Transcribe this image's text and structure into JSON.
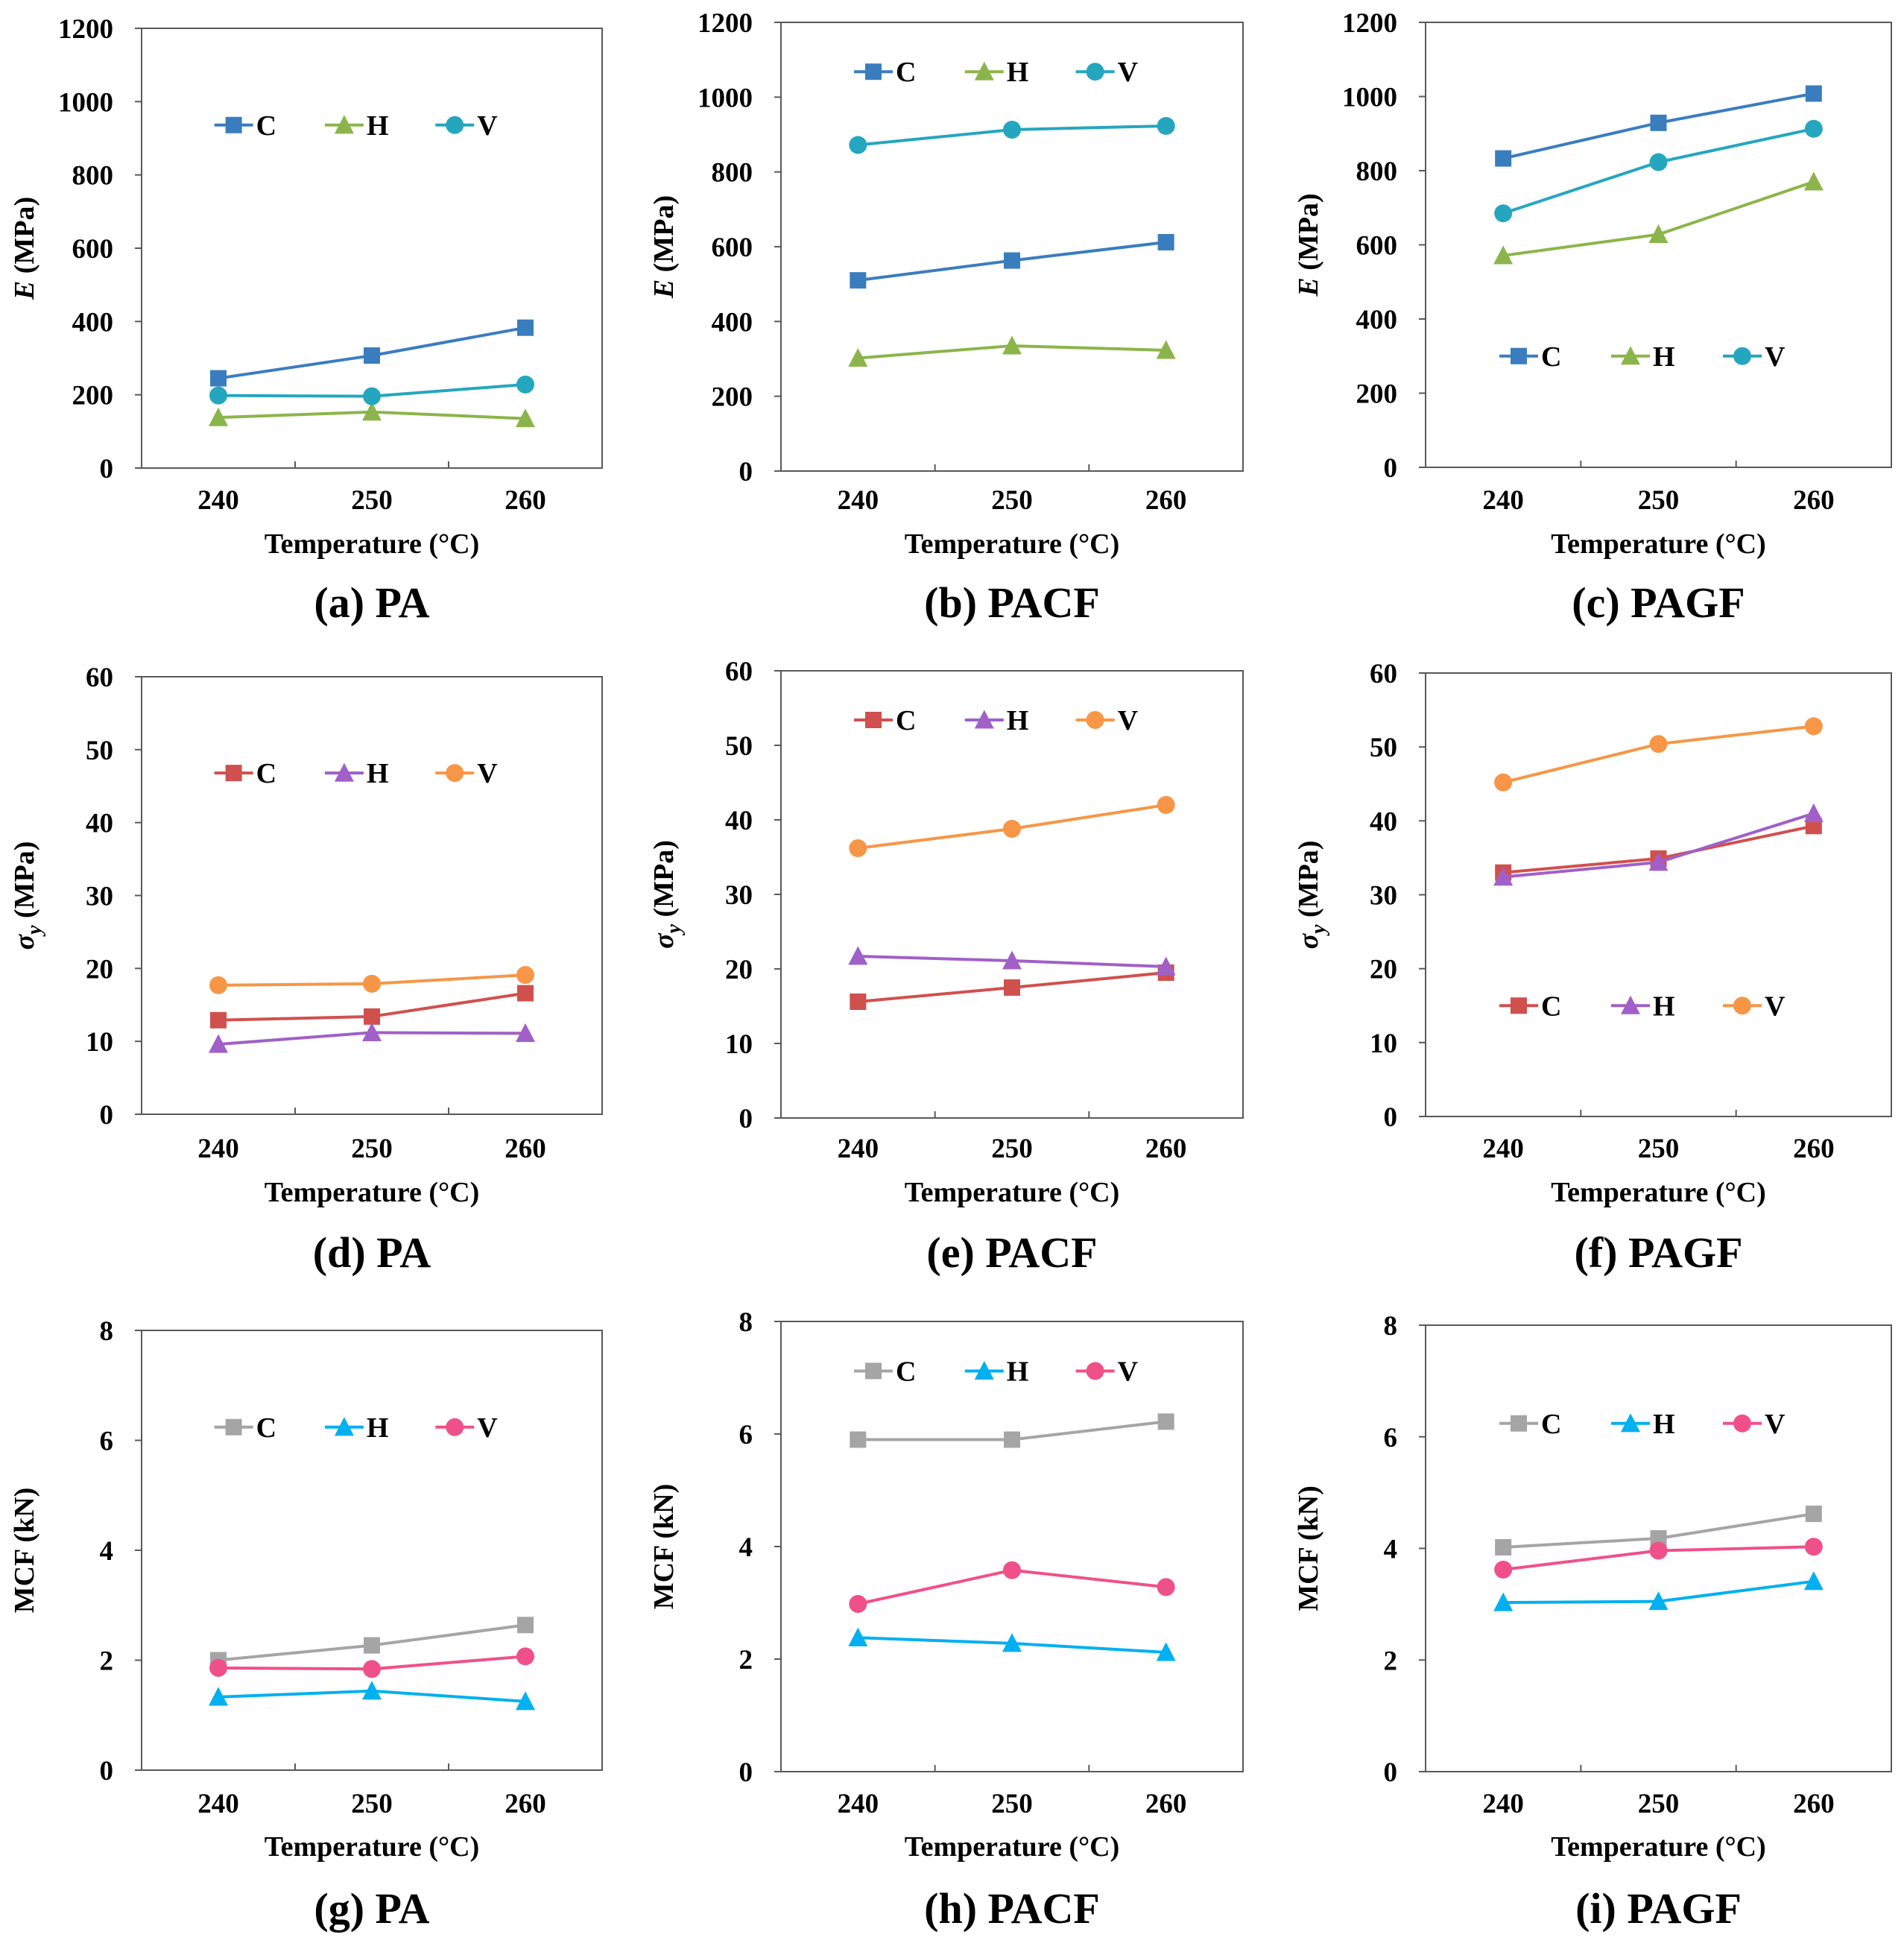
{
  "figure": {
    "xlabel": "Temperature (°C)",
    "ylabel_suffix": " (MPa)",
    "mcf_ylabel": "MCF (kN)",
    "ylabel_symbol_E": "E",
    "ylabel_symbol_sigma": "σ",
    "ylabel_subscript_sigma": "y"
  },
  "chart_data": [
    {
      "type": "line",
      "panel": "a",
      "caption": "(a) PA",
      "ylabel": "E (MPa)",
      "xlabel": "Temperature (°C)",
      "categories": [
        "240",
        "250",
        "260"
      ],
      "ylim": [
        0,
        1200
      ],
      "yticks": [
        0,
        200,
        400,
        600,
        800,
        1000,
        1200
      ],
      "legend_position": "upper-middle",
      "series": [
        {
          "name": "C",
          "color": "#3A7DBF",
          "marker": "square",
          "values": [
            245,
            307,
            383
          ]
        },
        {
          "name": "H",
          "color": "#8BB54A",
          "marker": "triangle",
          "values": [
            138,
            153,
            135
          ]
        },
        {
          "name": "V",
          "color": "#25A6BF",
          "marker": "circle",
          "values": [
            198,
            196,
            228
          ]
        }
      ]
    },
    {
      "type": "line",
      "panel": "b",
      "caption": "(b) PACF",
      "ylabel": "E (MPa)",
      "xlabel": "Temperature (°C)",
      "categories": [
        "240",
        "250",
        "260"
      ],
      "ylim": [
        0,
        1200
      ],
      "yticks": [
        0,
        200,
        400,
        600,
        800,
        1000,
        1200
      ],
      "legend_position": "top",
      "series": [
        {
          "name": "C",
          "color": "#3A7DBF",
          "marker": "square",
          "values": [
            510,
            563,
            612
          ]
        },
        {
          "name": "H",
          "color": "#8BB54A",
          "marker": "triangle",
          "values": [
            302,
            335,
            323
          ]
        },
        {
          "name": "V",
          "color": "#25A6BF",
          "marker": "circle",
          "values": [
            872,
            913,
            923
          ]
        }
      ]
    },
    {
      "type": "line",
      "panel": "c",
      "caption": "(c) PAGF",
      "ylabel": "E (MPa)",
      "xlabel": "Temperature (°C)",
      "categories": [
        "240",
        "250",
        "260"
      ],
      "ylim": [
        0,
        1200
      ],
      "yticks": [
        0,
        200,
        400,
        600,
        800,
        1000,
        1200
      ],
      "legend_position": "middle",
      "series": [
        {
          "name": "C",
          "color": "#3A7DBF",
          "marker": "square",
          "values": [
            833,
            929,
            1008
          ]
        },
        {
          "name": "H",
          "color": "#8BB54A",
          "marker": "triangle",
          "values": [
            571,
            628,
            770
          ]
        },
        {
          "name": "V",
          "color": "#25A6BF",
          "marker": "circle",
          "values": [
            685,
            823,
            913
          ]
        }
      ]
    },
    {
      "type": "line",
      "panel": "d",
      "caption": "(d) PA",
      "ylabel": "σy (MPa)",
      "xlabel": "Temperature (°C)",
      "categories": [
        "240",
        "250",
        "260"
      ],
      "ylim": [
        0,
        60
      ],
      "yticks": [
        0,
        10,
        20,
        30,
        40,
        50,
        60
      ],
      "legend_position": "upper-middle",
      "series": [
        {
          "name": "C",
          "color": "#D0504D",
          "marker": "square",
          "values": [
            12.9,
            13.4,
            16.6
          ]
        },
        {
          "name": "H",
          "color": "#A060C8",
          "marker": "triangle",
          "values": [
            9.6,
            11.2,
            11.1
          ]
        },
        {
          "name": "V",
          "color": "#F79646",
          "marker": "circle",
          "values": [
            17.7,
            17.9,
            19.1
          ]
        }
      ]
    },
    {
      "type": "line",
      "panel": "e",
      "caption": "(e) PACF",
      "ylabel": "σy (MPa)",
      "xlabel": "Temperature (°C)",
      "categories": [
        "240",
        "250",
        "260"
      ],
      "ylim": [
        0,
        60
      ],
      "yticks": [
        0,
        10,
        20,
        30,
        40,
        50,
        60
      ],
      "legend_position": "top",
      "series": [
        {
          "name": "C",
          "color": "#D0504D",
          "marker": "square",
          "values": [
            15.6,
            17.5,
            19.5
          ]
        },
        {
          "name": "H",
          "color": "#A060C8",
          "marker": "triangle",
          "values": [
            21.7,
            21.1,
            20.3
          ]
        },
        {
          "name": "V",
          "color": "#F79646",
          "marker": "circle",
          "values": [
            36.2,
            38.8,
            42.0
          ]
        }
      ]
    },
    {
      "type": "line",
      "panel": "f",
      "caption": "(f) PAGF",
      "ylabel": "σy (MPa)",
      "xlabel": "Temperature (°C)",
      "categories": [
        "240",
        "250",
        "260"
      ],
      "ylim": [
        0,
        60
      ],
      "yticks": [
        0,
        10,
        20,
        30,
        40,
        50,
        60
      ],
      "legend_position": "lower-middle",
      "series": [
        {
          "name": "C",
          "color": "#D0504D",
          "marker": "square",
          "values": [
            33.0,
            34.9,
            39.3
          ]
        },
        {
          "name": "H",
          "color": "#A060C8",
          "marker": "triangle",
          "values": [
            32.4,
            34.4,
            41.0
          ]
        },
        {
          "name": "V",
          "color": "#F79646",
          "marker": "circle",
          "values": [
            45.2,
            50.4,
            52.8
          ]
        }
      ]
    },
    {
      "type": "line",
      "panel": "g",
      "caption": "(g) PA",
      "ylabel": "MCF (kN)",
      "xlabel": "Temperature (°C)",
      "categories": [
        "240",
        "250",
        "260"
      ],
      "ylim": [
        0,
        8
      ],
      "yticks": [
        0,
        2,
        4,
        6,
        8
      ],
      "legend_position": "upper-middle",
      "series": [
        {
          "name": "C",
          "color": "#A5A5A5",
          "marker": "square",
          "values": [
            2.0,
            2.27,
            2.64
          ]
        },
        {
          "name": "H",
          "color": "#00B0F0",
          "marker": "triangle",
          "values": [
            1.33,
            1.44,
            1.25
          ]
        },
        {
          "name": "V",
          "color": "#F0508A",
          "marker": "circle",
          "values": [
            1.86,
            1.84,
            2.07
          ]
        }
      ]
    },
    {
      "type": "line",
      "panel": "h",
      "caption": "(h) PACF",
      "ylabel": "MCF (kN)",
      "xlabel": "Temperature (°C)",
      "categories": [
        "240",
        "250",
        "260"
      ],
      "ylim": [
        0,
        8
      ],
      "yticks": [
        0,
        2,
        4,
        6,
        8
      ],
      "legend_position": "top",
      "series": [
        {
          "name": "C",
          "color": "#A5A5A5",
          "marker": "square",
          "values": [
            5.9,
            5.9,
            6.22
          ]
        },
        {
          "name": "H",
          "color": "#00B0F0",
          "marker": "triangle",
          "values": [
            2.38,
            2.28,
            2.12
          ]
        },
        {
          "name": "V",
          "color": "#F0508A",
          "marker": "circle",
          "values": [
            2.98,
            3.58,
            3.28
          ]
        }
      ]
    },
    {
      "type": "line",
      "panel": "i",
      "caption": "(i) PAGF",
      "ylabel": "MCF (kN)",
      "xlabel": "Temperature (°C)",
      "categories": [
        "240",
        "250",
        "260"
      ],
      "ylim": [
        0,
        8
      ],
      "yticks": [
        0,
        2,
        4,
        6,
        8
      ],
      "legend_position": "upper-middle",
      "series": [
        {
          "name": "C",
          "color": "#A5A5A5",
          "marker": "square",
          "values": [
            4.02,
            4.18,
            4.62
          ]
        },
        {
          "name": "H",
          "color": "#00B0F0",
          "marker": "triangle",
          "values": [
            3.03,
            3.05,
            3.41
          ]
        },
        {
          "name": "V",
          "color": "#F0508A",
          "marker": "circle",
          "values": [
            3.62,
            3.96,
            4.03
          ]
        }
      ]
    }
  ]
}
